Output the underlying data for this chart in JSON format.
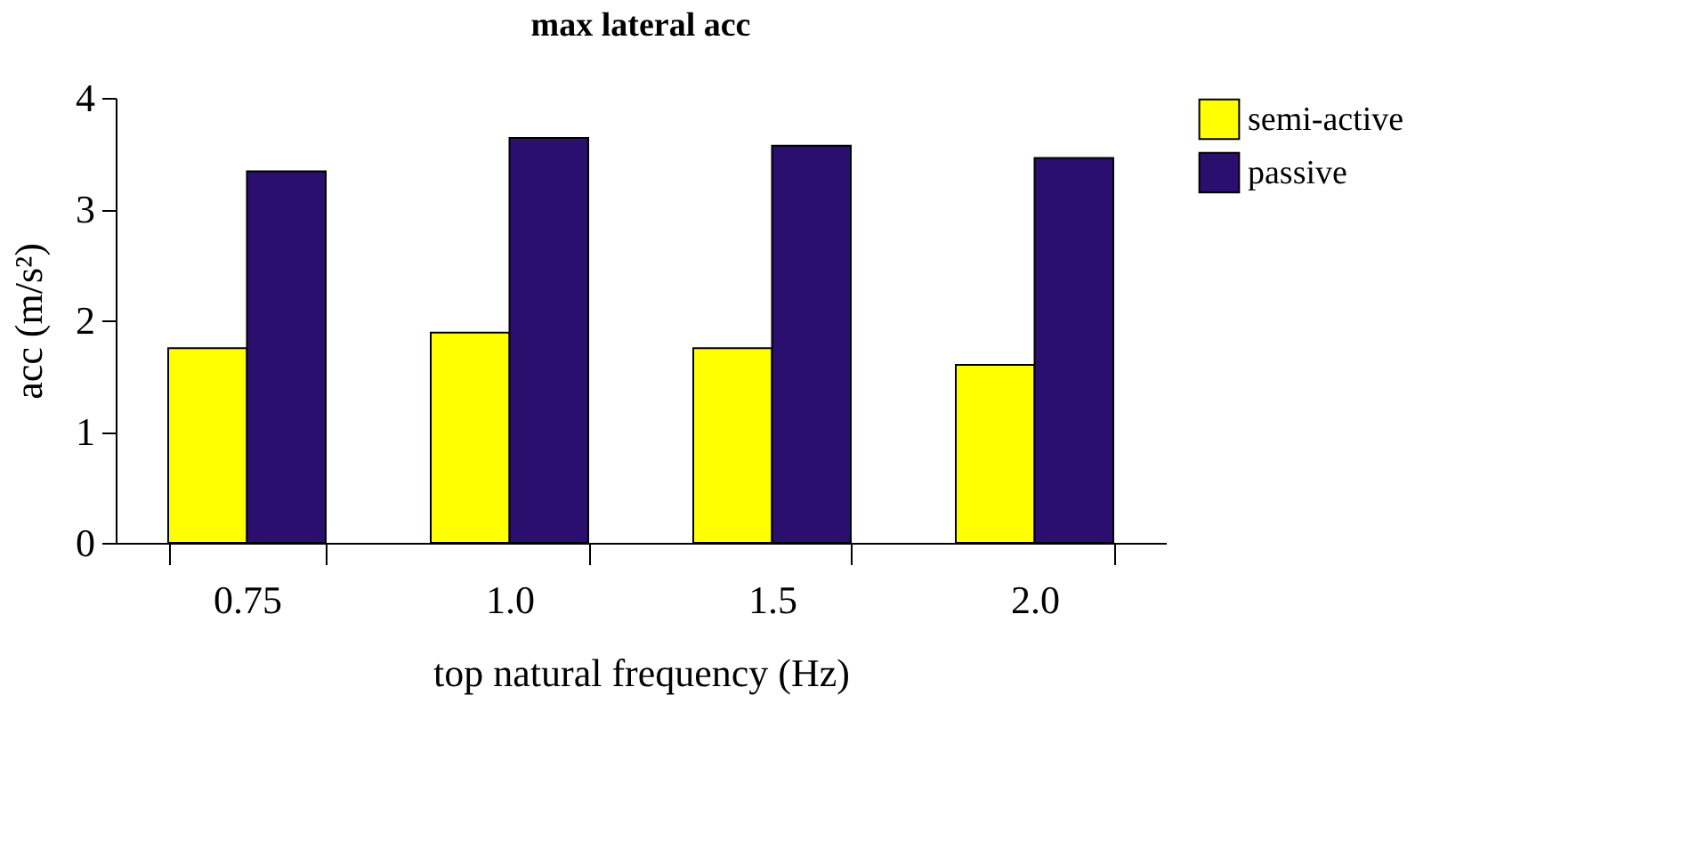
{
  "chart_data": {
    "type": "bar",
    "title": "max lateral acc",
    "xlabel": "top natural frequency (Hz)",
    "ylabel": "acc (m/s²)",
    "categories": [
      "0.75",
      "1.0",
      "1.5",
      "2.0"
    ],
    "series": [
      {
        "name": "semi-active",
        "color": "#ffff00",
        "values": [
          1.75,
          1.89,
          1.75,
          1.6
        ]
      },
      {
        "name": "passive",
        "color": "#2a0f6e",
        "values": [
          3.34,
          3.64,
          3.57,
          3.46
        ]
      }
    ],
    "ylim": [
      0,
      4
    ],
    "yticks": [
      0,
      1,
      2,
      3,
      4
    ],
    "grid": false,
    "legend": "right"
  }
}
